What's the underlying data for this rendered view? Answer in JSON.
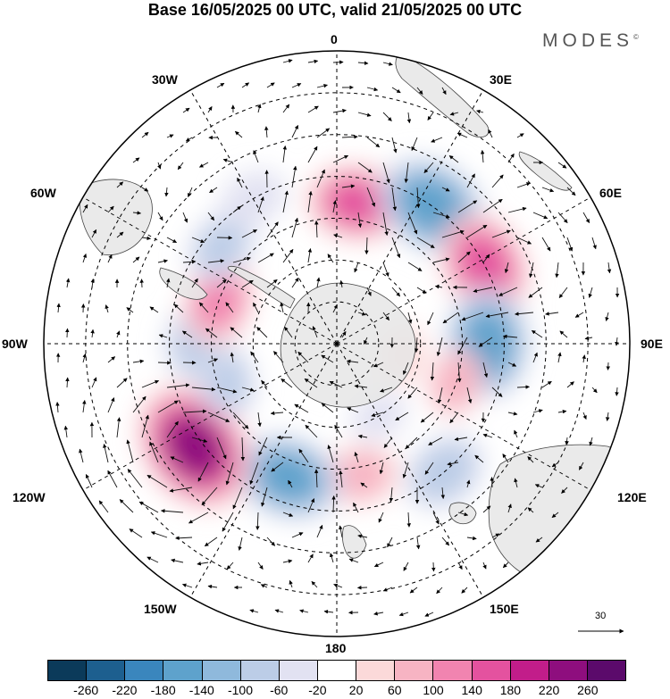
{
  "title": "Base 16/05/2025 00 UTC, valid 21/05/2025 00 UTC",
  "brand": {
    "name": "MODES",
    "mark": "©"
  },
  "longitude_labels": {
    "top": "0",
    "bottom": "180",
    "left": "90W",
    "right": "90E",
    "upper_left_30": "30W",
    "upper_left_60": "60W",
    "upper_right_30": "30E",
    "upper_right_60": "60E",
    "lower_left_120": "120W",
    "lower_left_150": "150W",
    "lower_right_120": "120E",
    "lower_right_150": "150E"
  },
  "wind_scale": {
    "value": "30"
  },
  "colorbar": {
    "colors": [
      "#0b3a5a",
      "#1d5f8f",
      "#3a86bd",
      "#5ea2cc",
      "#8fb9dc",
      "#bccde7",
      "#e2e2f2",
      "#ffffff",
      "#fbd9d9",
      "#f7b4c3",
      "#f184b0",
      "#e4529f",
      "#c21d8a",
      "#8e0e7e",
      "#5b0a6b"
    ],
    "ticks": [
      "-260",
      "-220",
      "-180",
      "-140",
      "-100",
      "-60",
      "-20",
      "20",
      "60",
      "100",
      "140",
      "180",
      "220",
      "260"
    ]
  },
  "anomalies": [
    {
      "lat": -56,
      "lon": 8,
      "value": 140
    },
    {
      "lat": -50,
      "lon": 35,
      "value": -180
    },
    {
      "lat": -50,
      "lon": 62,
      "value": 160
    },
    {
      "lat": -54,
      "lon": 90,
      "value": -170
    },
    {
      "lat": -60,
      "lon": 108,
      "value": 60
    },
    {
      "lat": -50,
      "lon": 140,
      "value": -100
    },
    {
      "lat": -58,
      "lon": 170,
      "value": 80
    },
    {
      "lat": -56,
      "lon": -160,
      "value": -160
    },
    {
      "lat": -48,
      "lon": -126,
      "value": 230
    },
    {
      "lat": -62,
      "lon": -108,
      "value": -80
    },
    {
      "lat": -56,
      "lon": -90,
      "value": -80
    },
    {
      "lat": -60,
      "lon": -70,
      "value": 110
    },
    {
      "lat": -54,
      "lon": -50,
      "value": -80
    },
    {
      "lat": -50,
      "lon": -30,
      "value": -60
    },
    {
      "lat": -70,
      "lon": 150,
      "value": -40
    },
    {
      "lat": -74,
      "lon": 100,
      "value": 40
    }
  ]
}
